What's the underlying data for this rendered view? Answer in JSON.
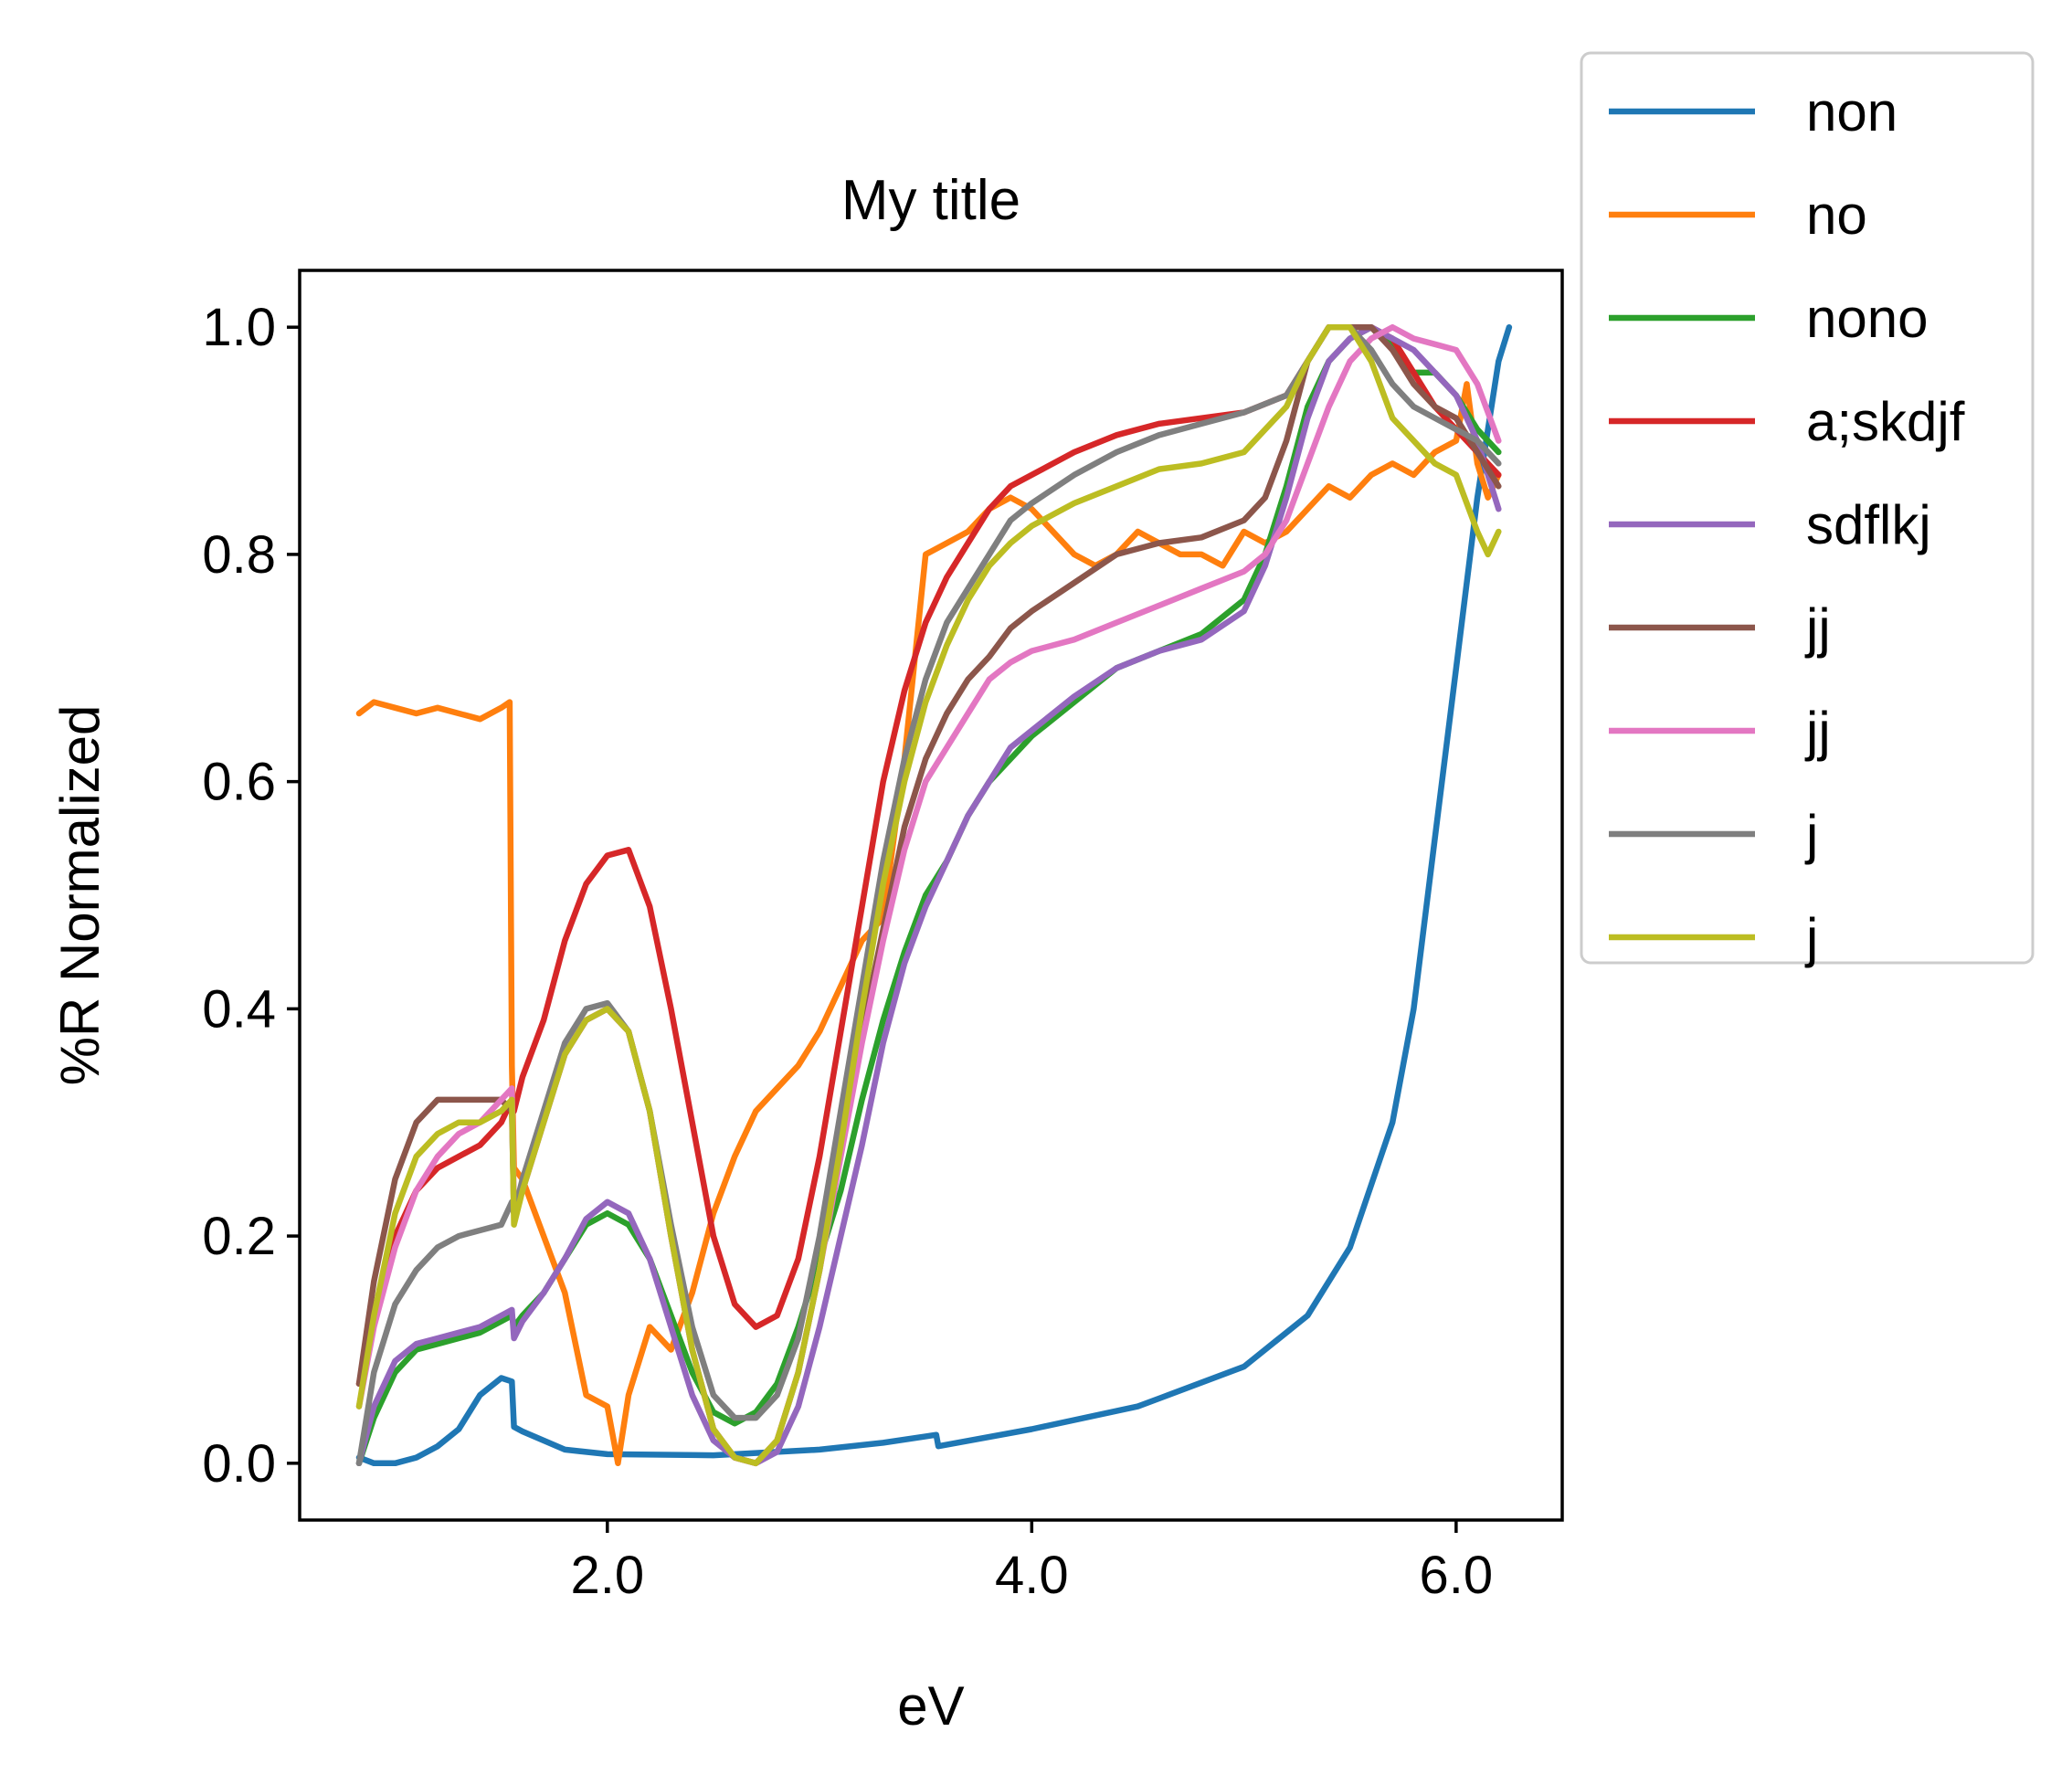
{
  "chart_data": {
    "type": "line",
    "title": "My title",
    "xlabel": "eV",
    "ylabel": "%R Normalized",
    "xlim": [
      0.55,
      6.5
    ],
    "ylim": [
      -0.05,
      1.05
    ],
    "xticks": [
      2.0,
      4.0,
      6.0
    ],
    "xtick_labels": [
      "2.0",
      "4.0",
      "6.0"
    ],
    "yticks": [
      0.0,
      0.2,
      0.4,
      0.6,
      0.8,
      1.0
    ],
    "ytick_labels": [
      "0.0",
      "0.2",
      "0.4",
      "0.6",
      "0.8",
      "1.0"
    ],
    "grid": false,
    "legend_position": "outside-top-right",
    "series": [
      {
        "name": "non",
        "color": "#1f77b4",
        "x": [
          0.83,
          0.9,
          1.0,
          1.1,
          1.2,
          1.3,
          1.4,
          1.5,
          1.55,
          1.56,
          1.6,
          1.8,
          2.0,
          2.5,
          3.0,
          3.3,
          3.55,
          3.56,
          4.0,
          4.5,
          5.0,
          5.3,
          5.5,
          5.7,
          5.8,
          5.9,
          6.0,
          6.1,
          6.2,
          6.25
        ],
        "y": [
          0.005,
          0.0,
          0.0,
          0.005,
          0.015,
          0.03,
          0.06,
          0.075,
          0.072,
          0.032,
          0.028,
          0.012,
          0.008,
          0.007,
          0.012,
          0.018,
          0.025,
          0.015,
          0.03,
          0.05,
          0.085,
          0.13,
          0.19,
          0.3,
          0.4,
          0.55,
          0.7,
          0.85,
          0.97,
          1.0
        ]
      },
      {
        "name": "no",
        "color": "#ff7f0e",
        "x": [
          0.83,
          0.9,
          1.0,
          1.1,
          1.2,
          1.3,
          1.4,
          1.5,
          1.54,
          1.55,
          1.56,
          1.6,
          1.7,
          1.8,
          1.9,
          2.0,
          2.05,
          2.1,
          2.2,
          2.3,
          2.4,
          2.5,
          2.6,
          2.7,
          2.8,
          2.9,
          3.0,
          3.1,
          3.2,
          3.3,
          3.4,
          3.5,
          3.6,
          3.7,
          3.8,
          3.9,
          4.0,
          4.1,
          4.2,
          4.3,
          4.4,
          4.5,
          4.6,
          4.7,
          4.8,
          4.9,
          5.0,
          5.1,
          5.2,
          5.3,
          5.4,
          5.5,
          5.6,
          5.7,
          5.8,
          5.9,
          6.0,
          6.05,
          6.1,
          6.15,
          6.2
        ],
        "y": [
          0.66,
          0.67,
          0.665,
          0.66,
          0.665,
          0.66,
          0.655,
          0.665,
          0.67,
          0.35,
          0.26,
          0.25,
          0.2,
          0.15,
          0.06,
          0.05,
          0.0,
          0.06,
          0.12,
          0.1,
          0.15,
          0.22,
          0.27,
          0.31,
          0.33,
          0.35,
          0.38,
          0.42,
          0.46,
          0.48,
          0.62,
          0.8,
          0.81,
          0.82,
          0.84,
          0.85,
          0.84,
          0.82,
          0.8,
          0.79,
          0.8,
          0.82,
          0.81,
          0.8,
          0.8,
          0.79,
          0.82,
          0.81,
          0.82,
          0.84,
          0.86,
          0.85,
          0.87,
          0.88,
          0.87,
          0.89,
          0.9,
          0.95,
          0.88,
          0.85,
          0.87
        ]
      },
      {
        "name": "nono",
        "color": "#2ca02c",
        "x": [
          0.83,
          0.9,
          1.0,
          1.1,
          1.2,
          1.3,
          1.4,
          1.5,
          1.55,
          1.56,
          1.6,
          1.7,
          1.8,
          1.9,
          2.0,
          2.1,
          2.2,
          2.3,
          2.4,
          2.5,
          2.6,
          2.7,
          2.8,
          2.9,
          3.0,
          3.1,
          3.2,
          3.3,
          3.4,
          3.5,
          3.6,
          3.7,
          3.8,
          3.9,
          4.0,
          4.2,
          4.4,
          4.6,
          4.8,
          5.0,
          5.1,
          5.2,
          5.3,
          5.4,
          5.5,
          5.6,
          5.7,
          5.8,
          5.9,
          6.0,
          6.1,
          6.2
        ],
        "y": [
          0.0,
          0.04,
          0.08,
          0.1,
          0.105,
          0.11,
          0.115,
          0.125,
          0.13,
          0.12,
          0.13,
          0.15,
          0.18,
          0.21,
          0.22,
          0.21,
          0.18,
          0.13,
          0.08,
          0.045,
          0.035,
          0.045,
          0.07,
          0.12,
          0.18,
          0.24,
          0.32,
          0.39,
          0.45,
          0.5,
          0.53,
          0.57,
          0.6,
          0.62,
          0.64,
          0.67,
          0.7,
          0.715,
          0.73,
          0.76,
          0.8,
          0.86,
          0.93,
          0.97,
          0.99,
          1.0,
          0.985,
          0.96,
          0.96,
          0.94,
          0.91,
          0.89
        ]
      },
      {
        "name": "a;skdjf",
        "color": "#d62728",
        "x": [
          0.83,
          0.9,
          1.0,
          1.1,
          1.2,
          1.3,
          1.4,
          1.5,
          1.55,
          1.56,
          1.6,
          1.7,
          1.8,
          1.9,
          2.0,
          2.1,
          2.2,
          2.3,
          2.4,
          2.5,
          2.6,
          2.7,
          2.8,
          2.9,
          3.0,
          3.1,
          3.2,
          3.3,
          3.4,
          3.5,
          3.6,
          3.7,
          3.8,
          3.9,
          4.0,
          4.2,
          4.4,
          4.6,
          4.8,
          5.0,
          5.2,
          5.3,
          5.4,
          5.5,
          5.6,
          5.7,
          5.8,
          5.9,
          6.0,
          6.1,
          6.2
        ],
        "y": [
          0.07,
          0.13,
          0.2,
          0.24,
          0.26,
          0.27,
          0.28,
          0.3,
          0.32,
          0.31,
          0.34,
          0.39,
          0.46,
          0.51,
          0.535,
          0.54,
          0.49,
          0.4,
          0.3,
          0.2,
          0.14,
          0.12,
          0.13,
          0.18,
          0.27,
          0.38,
          0.49,
          0.6,
          0.68,
          0.74,
          0.78,
          0.81,
          0.84,
          0.86,
          0.87,
          0.89,
          0.905,
          0.915,
          0.92,
          0.925,
          0.94,
          0.97,
          1.0,
          1.0,
          1.0,
          0.99,
          0.96,
          0.93,
          0.91,
          0.89,
          0.87
        ]
      },
      {
        "name": "sdflkj",
        "color": "#9467bd",
        "x": [
          0.83,
          0.9,
          1.0,
          1.1,
          1.2,
          1.3,
          1.4,
          1.5,
          1.55,
          1.56,
          1.6,
          1.7,
          1.8,
          1.9,
          2.0,
          2.1,
          2.2,
          2.3,
          2.4,
          2.5,
          2.6,
          2.7,
          2.8,
          2.9,
          3.0,
          3.1,
          3.2,
          3.3,
          3.4,
          3.5,
          3.6,
          3.7,
          3.8,
          3.9,
          4.0,
          4.2,
          4.4,
          4.6,
          4.8,
          5.0,
          5.1,
          5.2,
          5.3,
          5.4,
          5.5,
          5.6,
          5.7,
          5.8,
          5.9,
          6.0,
          6.1,
          6.2
        ],
        "y": [
          0.0,
          0.05,
          0.09,
          0.105,
          0.11,
          0.115,
          0.12,
          0.13,
          0.135,
          0.11,
          0.125,
          0.15,
          0.18,
          0.215,
          0.23,
          0.22,
          0.18,
          0.12,
          0.06,
          0.02,
          0.005,
          0.0,
          0.01,
          0.05,
          0.12,
          0.2,
          0.28,
          0.37,
          0.44,
          0.49,
          0.53,
          0.57,
          0.6,
          0.63,
          0.645,
          0.675,
          0.7,
          0.715,
          0.725,
          0.75,
          0.79,
          0.85,
          0.92,
          0.97,
          0.99,
          1.0,
          0.99,
          0.98,
          0.96,
          0.94,
          0.9,
          0.84
        ]
      },
      {
        "name": "jj",
        "color": "#8c564b",
        "x": [
          0.83,
          0.9,
          1.0,
          1.1,
          1.2,
          1.3,
          1.4,
          1.5,
          1.55,
          1.56,
          1.6,
          1.7,
          1.8,
          1.9,
          2.0,
          2.1,
          2.2,
          2.3,
          2.4,
          2.5,
          2.6,
          2.7,
          2.8,
          2.9,
          3.0,
          3.1,
          3.2,
          3.3,
          3.4,
          3.5,
          3.6,
          3.7,
          3.8,
          3.9,
          4.0,
          4.2,
          4.4,
          4.6,
          4.8,
          5.0,
          5.1,
          5.2,
          5.3,
          5.4,
          5.5,
          5.6,
          5.7,
          5.8,
          5.9,
          6.0,
          6.1,
          6.2
        ],
        "y": [
          0.07,
          0.16,
          0.25,
          0.3,
          0.32,
          0.32,
          0.32,
          0.32,
          0.31,
          0.22,
          0.24,
          0.3,
          0.36,
          0.39,
          0.4,
          0.38,
          0.31,
          0.2,
          0.1,
          0.03,
          0.005,
          0.0,
          0.02,
          0.08,
          0.17,
          0.28,
          0.38,
          0.47,
          0.56,
          0.62,
          0.66,
          0.69,
          0.71,
          0.735,
          0.75,
          0.775,
          0.8,
          0.81,
          0.815,
          0.83,
          0.85,
          0.9,
          0.97,
          1.0,
          1.0,
          1.0,
          0.98,
          0.95,
          0.93,
          0.92,
          0.89,
          0.86
        ]
      },
      {
        "name": "jj",
        "color": "#e377c2",
        "x": [
          0.83,
          0.9,
          1.0,
          1.1,
          1.2,
          1.3,
          1.4,
          1.5,
          1.55,
          1.56,
          1.6,
          1.7,
          1.8,
          1.9,
          2.0,
          2.1,
          2.2,
          2.3,
          2.4,
          2.5,
          2.6,
          2.7,
          2.8,
          2.9,
          3.0,
          3.1,
          3.2,
          3.3,
          3.4,
          3.5,
          3.6,
          3.7,
          3.8,
          3.9,
          4.0,
          4.2,
          4.4,
          4.6,
          4.8,
          5.0,
          5.1,
          5.2,
          5.3,
          5.4,
          5.5,
          5.6,
          5.7,
          5.8,
          5.9,
          6.0,
          6.1,
          6.2
        ],
        "y": [
          0.05,
          0.12,
          0.19,
          0.24,
          0.27,
          0.29,
          0.3,
          0.32,
          0.33,
          0.22,
          0.24,
          0.3,
          0.36,
          0.39,
          0.4,
          0.38,
          0.31,
          0.2,
          0.1,
          0.03,
          0.005,
          0.0,
          0.02,
          0.08,
          0.17,
          0.27,
          0.37,
          0.46,
          0.54,
          0.6,
          0.63,
          0.66,
          0.69,
          0.705,
          0.715,
          0.725,
          0.74,
          0.755,
          0.77,
          0.785,
          0.8,
          0.83,
          0.88,
          0.93,
          0.97,
          0.99,
          1.0,
          0.99,
          0.985,
          0.98,
          0.95,
          0.9
        ]
      },
      {
        "name": "j",
        "color": "#7f7f7f",
        "x": [
          0.83,
          0.9,
          1.0,
          1.1,
          1.2,
          1.3,
          1.4,
          1.5,
          1.55,
          1.56,
          1.6,
          1.7,
          1.8,
          1.9,
          2.0,
          2.1,
          2.2,
          2.3,
          2.4,
          2.5,
          2.6,
          2.7,
          2.8,
          2.9,
          3.0,
          3.1,
          3.2,
          3.3,
          3.4,
          3.5,
          3.6,
          3.7,
          3.8,
          3.9,
          4.0,
          4.2,
          4.4,
          4.6,
          4.8,
          5.0,
          5.2,
          5.3,
          5.4,
          5.5,
          5.6,
          5.7,
          5.8,
          5.9,
          6.0,
          6.1,
          6.2
        ],
        "y": [
          0.0,
          0.08,
          0.14,
          0.17,
          0.19,
          0.2,
          0.205,
          0.21,
          0.23,
          0.22,
          0.25,
          0.31,
          0.37,
          0.4,
          0.405,
          0.38,
          0.31,
          0.21,
          0.12,
          0.06,
          0.04,
          0.04,
          0.06,
          0.11,
          0.2,
          0.31,
          0.42,
          0.53,
          0.62,
          0.69,
          0.74,
          0.77,
          0.8,
          0.83,
          0.845,
          0.87,
          0.89,
          0.905,
          0.915,
          0.925,
          0.94,
          0.97,
          1.0,
          1.0,
          0.98,
          0.95,
          0.93,
          0.92,
          0.91,
          0.9,
          0.88
        ]
      },
      {
        "name": "j",
        "color": "#bcbd22",
        "x": [
          0.83,
          0.9,
          1.0,
          1.1,
          1.2,
          1.3,
          1.4,
          1.5,
          1.55,
          1.56,
          1.6,
          1.7,
          1.8,
          1.9,
          2.0,
          2.1,
          2.2,
          2.3,
          2.4,
          2.5,
          2.6,
          2.7,
          2.8,
          2.9,
          3.0,
          3.1,
          3.2,
          3.3,
          3.4,
          3.5,
          3.6,
          3.7,
          3.8,
          3.9,
          4.0,
          4.2,
          4.4,
          4.6,
          4.8,
          5.0,
          5.2,
          5.3,
          5.4,
          5.5,
          5.6,
          5.7,
          5.8,
          5.9,
          6.0,
          6.1,
          6.15,
          6.2
        ],
        "y": [
          0.05,
          0.13,
          0.22,
          0.27,
          0.29,
          0.3,
          0.3,
          0.31,
          0.32,
          0.21,
          0.24,
          0.3,
          0.36,
          0.39,
          0.4,
          0.38,
          0.31,
          0.2,
          0.1,
          0.03,
          0.005,
          0.0,
          0.02,
          0.08,
          0.17,
          0.28,
          0.4,
          0.51,
          0.6,
          0.67,
          0.72,
          0.76,
          0.79,
          0.81,
          0.825,
          0.845,
          0.86,
          0.875,
          0.88,
          0.89,
          0.93,
          0.97,
          1.0,
          1.0,
          0.97,
          0.92,
          0.9,
          0.88,
          0.87,
          0.82,
          0.8,
          0.82
        ]
      }
    ]
  }
}
